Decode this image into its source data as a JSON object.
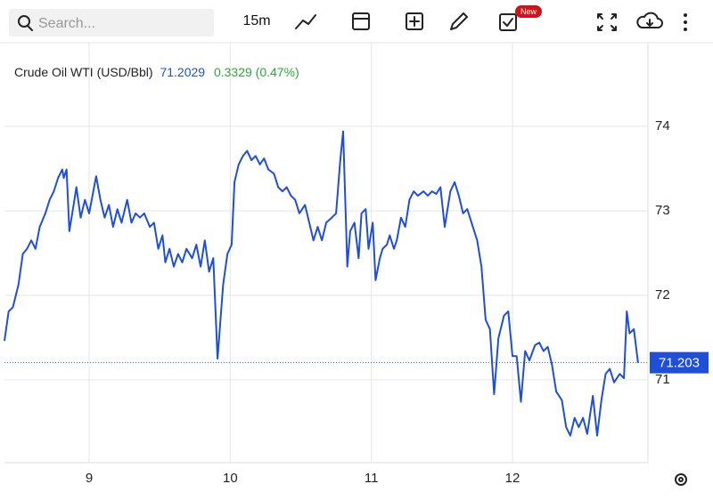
{
  "toolbar": {
    "search_placeholder": "Search...",
    "interval": "15m",
    "badge": "New"
  },
  "chart_data": {
    "type": "line",
    "title": "Crude Oil WTI (USD/Bbl)",
    "last": "71.2029",
    "change": "0.3329 (0.47%)",
    "x": [
      8.4,
      8.43,
      8.46,
      8.5,
      8.53,
      8.56,
      8.59,
      8.62,
      8.65,
      8.69,
      8.72,
      8.75,
      8.78,
      8.81,
      8.82,
      8.84,
      8.86,
      8.89,
      8.91,
      8.94,
      8.97,
      9.0,
      9.03,
      9.05,
      9.08,
      9.11,
      9.14,
      9.17,
      9.2,
      9.23,
      9.27,
      9.3,
      9.33,
      9.36,
      9.39,
      9.43,
      9.46,
      9.49,
      9.52,
      9.54,
      9.57,
      9.6,
      9.63,
      9.66,
      9.69,
      9.73,
      9.76,
      9.79,
      9.82,
      9.85,
      9.88,
      9.91,
      9.95,
      9.98,
      10.01,
      10.03,
      10.06,
      10.09,
      10.12,
      10.15,
      10.18,
      10.21,
      10.24,
      10.27,
      10.31,
      10.34,
      10.37,
      10.4,
      10.43,
      10.46,
      10.49,
      10.53,
      10.56,
      10.59,
      10.62,
      10.65,
      10.68,
      10.72,
      10.75,
      10.78,
      10.8,
      10.83,
      10.85,
      10.88,
      10.91,
      10.93,
      10.96,
      10.98,
      11.01,
      11.03,
      11.06,
      11.08,
      11.11,
      11.13,
      11.16,
      11.18,
      11.21,
      11.24,
      11.27,
      11.3,
      11.33,
      11.37,
      11.4,
      11.43,
      11.46,
      11.49,
      11.52,
      11.56,
      11.59,
      11.62,
      11.65,
      11.68,
      11.71,
      11.75,
      11.78,
      11.81,
      11.84,
      11.87,
      11.9,
      11.94,
      11.97,
      12.0,
      12.03,
      12.06,
      12.09,
      12.12,
      12.16,
      12.19,
      12.22,
      12.25,
      12.28,
      12.31,
      12.35,
      12.38,
      12.41,
      12.44,
      12.47,
      12.5,
      12.53,
      12.57,
      12.6,
      12.63,
      12.66,
      12.69,
      12.72,
      12.76,
      12.79,
      12.81,
      12.83,
      12.86,
      12.89
    ],
    "values": [
      71.46,
      71.81,
      71.86,
      72.13,
      72.49,
      72.55,
      72.65,
      72.55,
      72.81,
      72.97,
      73.13,
      73.23,
      73.39,
      73.49,
      73.39,
      73.49,
      72.76,
      73.07,
      73.28,
      72.92,
      73.13,
      72.97,
      73.23,
      73.41,
      73.13,
      72.92,
      73.07,
      72.81,
      73.02,
      72.86,
      73.13,
      72.86,
      72.97,
      72.92,
      72.97,
      72.81,
      72.86,
      72.55,
      72.71,
      72.39,
      72.55,
      72.34,
      72.49,
      72.39,
      72.55,
      72.44,
      72.6,
      72.34,
      72.65,
      72.28,
      72.44,
      71.25,
      72.13,
      72.49,
      72.6,
      73.34,
      73.55,
      73.65,
      73.71,
      73.6,
      73.65,
      73.55,
      73.62,
      73.49,
      73.44,
      73.28,
      73.23,
      73.28,
      73.18,
      73.13,
      72.97,
      73.07,
      72.86,
      72.65,
      72.81,
      72.65,
      72.86,
      72.92,
      72.97,
      73.6,
      73.94,
      72.34,
      72.76,
      72.86,
      72.44,
      72.97,
      73.02,
      72.55,
      72.86,
      72.18,
      72.44,
      72.55,
      72.6,
      72.71,
      72.55,
      72.65,
      72.92,
      72.81,
      73.13,
      73.23,
      73.18,
      73.23,
      73.18,
      73.23,
      73.2,
      73.28,
      72.81,
      73.23,
      73.34,
      73.18,
      72.97,
      73.02,
      72.86,
      72.65,
      72.34,
      71.71,
      71.6,
      70.83,
      71.49,
      71.76,
      71.81,
      71.28,
      71.28,
      70.74,
      71.34,
      71.23,
      71.41,
      71.44,
      71.34,
      71.39,
      71.18,
      70.86,
      70.76,
      70.44,
      70.34,
      70.55,
      70.44,
      70.55,
      70.36,
      70.81,
      70.34,
      70.76,
      71.07,
      71.13,
      70.97,
      71.07,
      71.02,
      71.81,
      71.55,
      71.6,
      71.2
    ],
    "color": "#1f4fd8",
    "last_price_line": 71.203,
    "xlim": [
      8.4,
      12.96
    ],
    "xticks": [
      9,
      10,
      11,
      12
    ],
    "ylim": [
      70.02,
      74.99
    ],
    "yticks": [
      71,
      72,
      73,
      74
    ],
    "grid": true
  }
}
